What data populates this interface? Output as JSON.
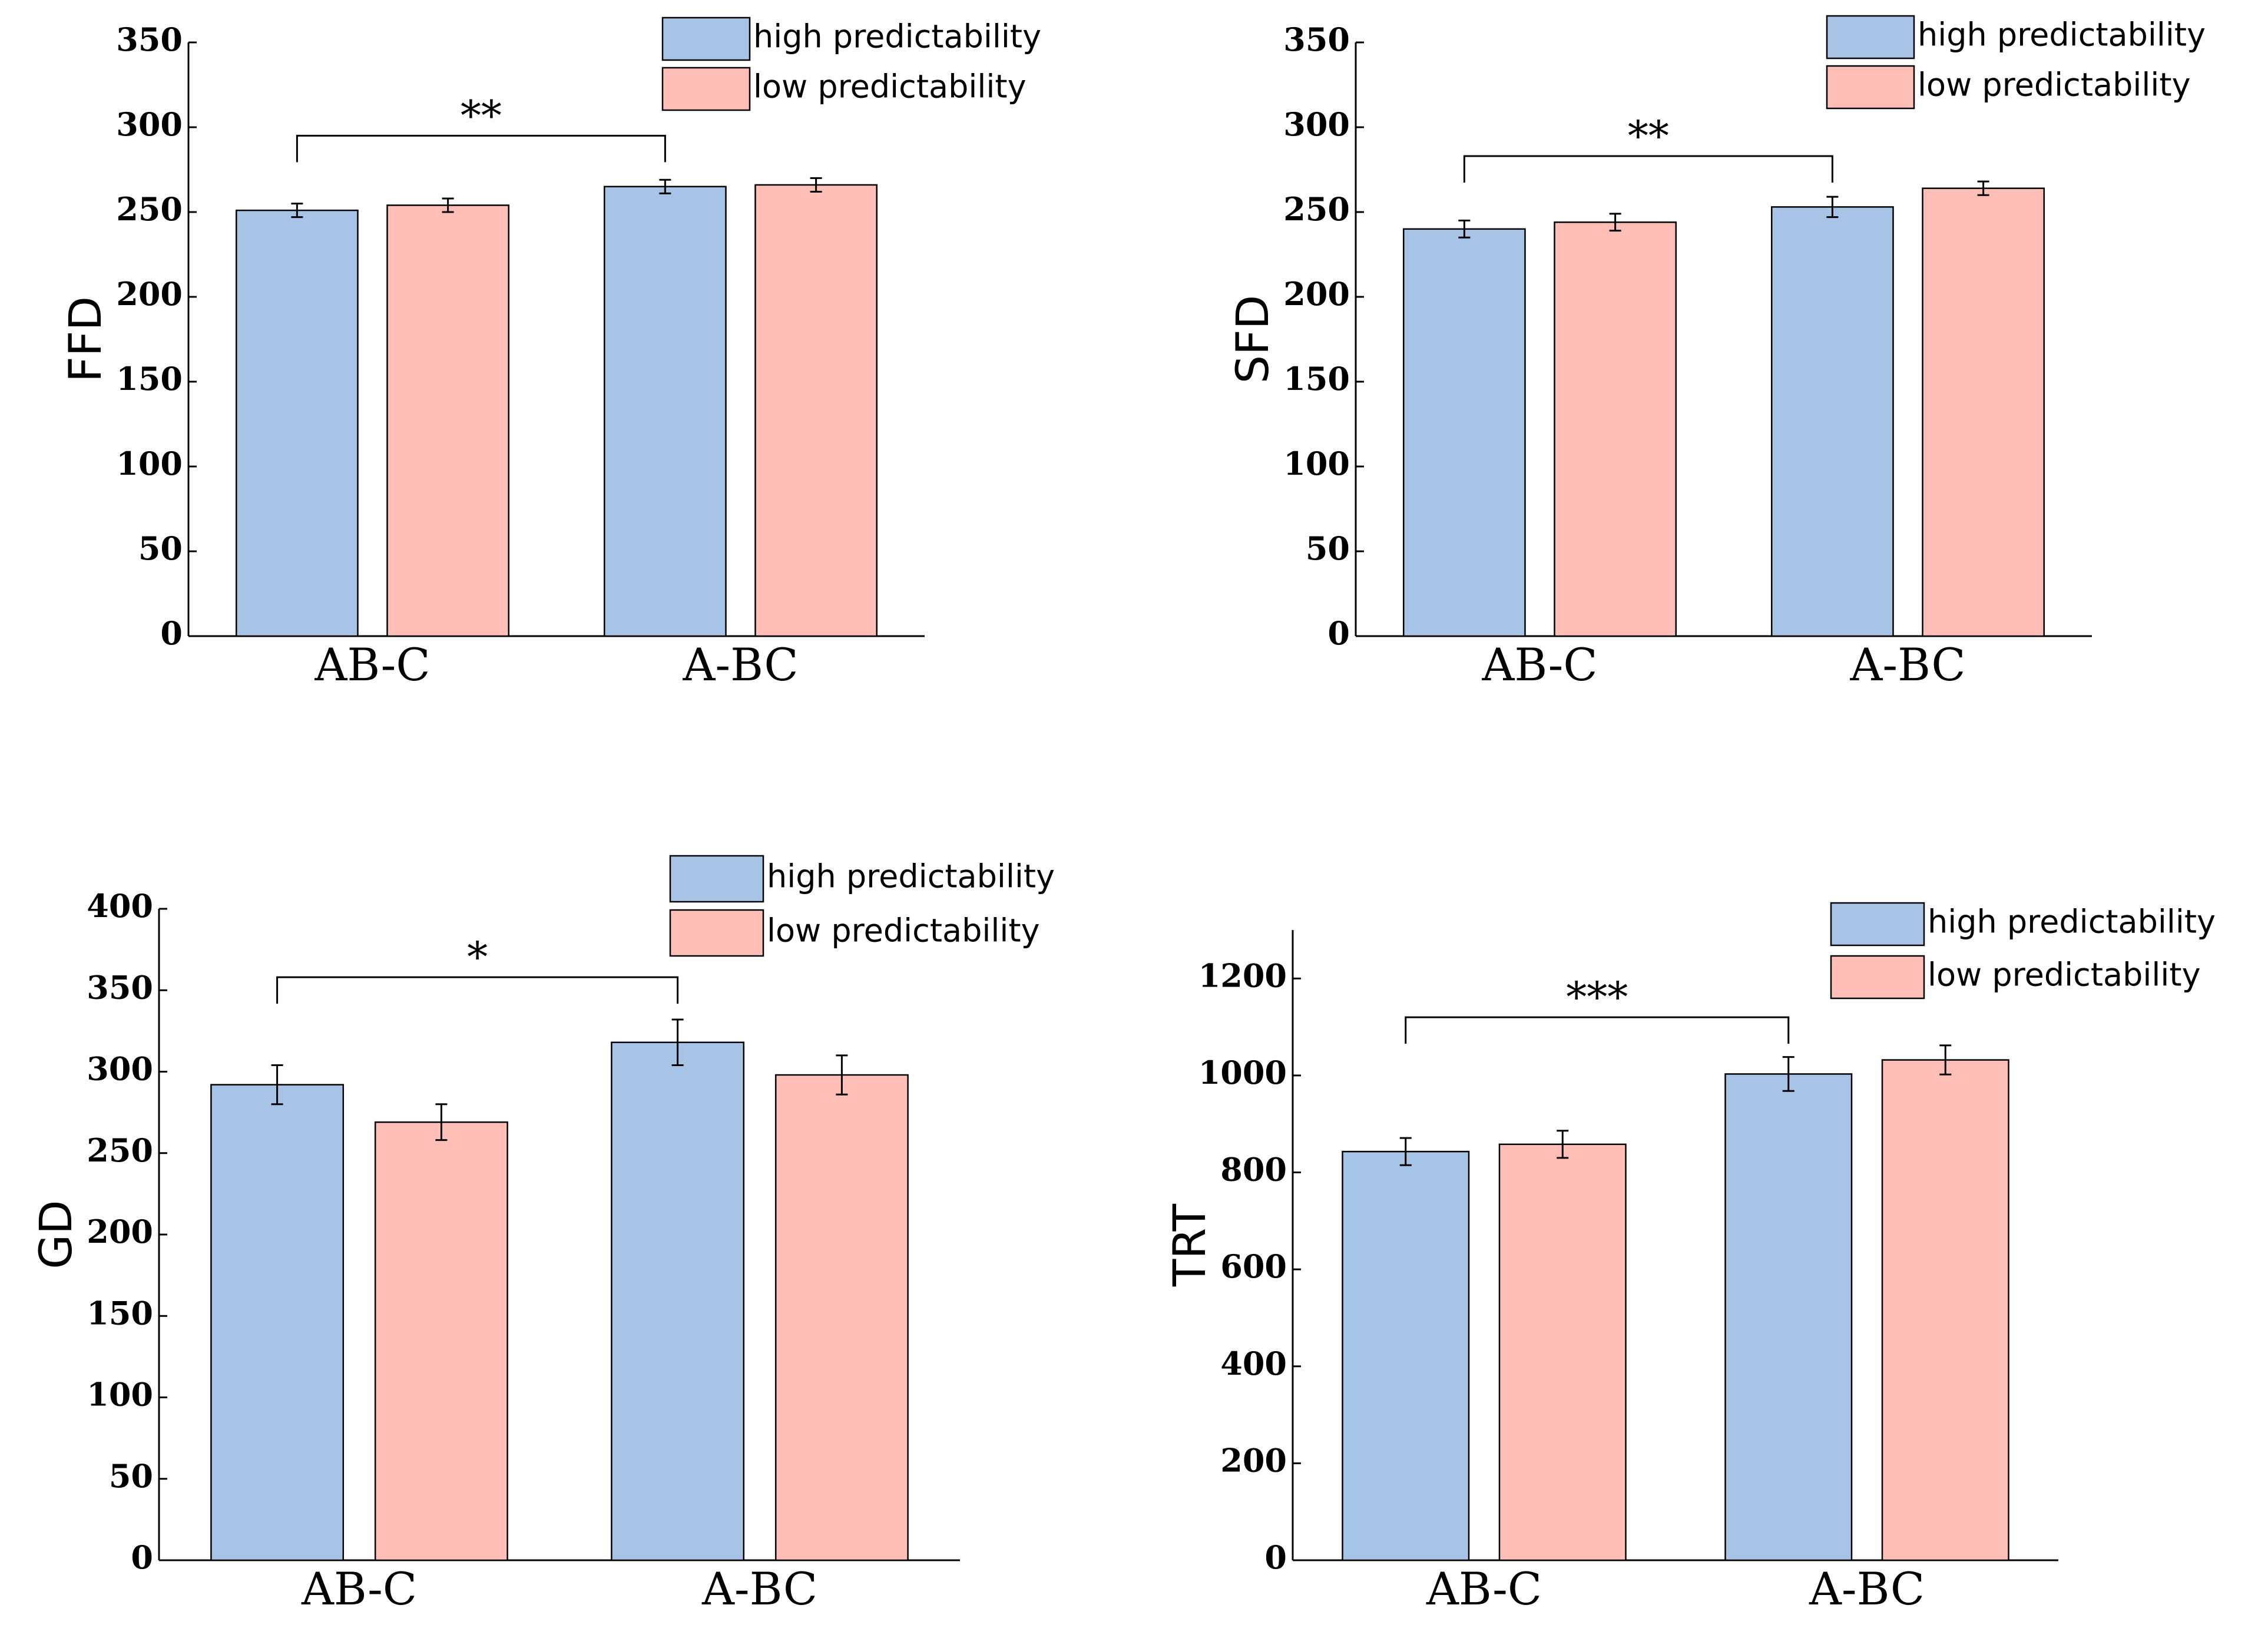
{
  "chart_data": [
    {
      "type": "bar",
      "ylabel": "FFD",
      "xlabel": "",
      "categories": [
        "AB-C",
        "A-BC"
      ],
      "series": [
        {
          "name": "high predictability",
          "values": [
            251,
            265
          ],
          "errors": [
            4,
            4
          ]
        },
        {
          "name": "low predictability",
          "values": [
            254,
            266
          ],
          "errors": [
            4,
            4
          ]
        }
      ],
      "ylim": [
        0,
        350
      ],
      "yticks": [
        0,
        50,
        100,
        150,
        200,
        250,
        300,
        350
      ],
      "significance": {
        "label": "**",
        "from_category": 0,
        "to_category": 1,
        "level": 295
      },
      "legend_position": "top-right",
      "colors": {
        "high predictability": "#a7c4e7",
        "low predictability": "#ffbfb7"
      }
    },
    {
      "type": "bar",
      "ylabel": "SFD",
      "xlabel": "",
      "categories": [
        "AB-C",
        "A-BC"
      ],
      "series": [
        {
          "name": "high predictability",
          "values": [
            240,
            253
          ],
          "errors": [
            5,
            6
          ]
        },
        {
          "name": "low predictability",
          "values": [
            244,
            264
          ],
          "errors": [
            5,
            4
          ]
        }
      ],
      "ylim": [
        0,
        350
      ],
      "yticks": [
        0,
        50,
        100,
        150,
        200,
        250,
        300,
        350
      ],
      "significance": {
        "label": "**",
        "from_category": 0,
        "to_category": 1,
        "level": 283
      },
      "legend_position": "top-right",
      "colors": {
        "high predictability": "#a7c4e7",
        "low predictability": "#ffbfb7"
      }
    },
    {
      "type": "bar",
      "ylabel": "GD",
      "xlabel": "",
      "categories": [
        "AB-C",
        "A-BC"
      ],
      "series": [
        {
          "name": "high predictability",
          "values": [
            292,
            318
          ],
          "errors": [
            12,
            14
          ]
        },
        {
          "name": "low predictability",
          "values": [
            269,
            298
          ],
          "errors": [
            11,
            12
          ]
        }
      ],
      "ylim": [
        0,
        400
      ],
      "yticks": [
        0,
        50,
        100,
        150,
        200,
        250,
        300,
        350,
        400
      ],
      "significance": {
        "label": "*",
        "from_category": 0,
        "to_category": 1,
        "level": 358
      },
      "legend_position": "top-right",
      "colors": {
        "high predictability": "#a7c4e7",
        "low predictability": "#ffbfb7"
      }
    },
    {
      "type": "bar",
      "ylabel": "TRT",
      "xlabel": "",
      "categories": [
        "AB-C",
        "A-BC"
      ],
      "series": [
        {
          "name": "high predictability",
          "values": [
            843,
            1003
          ],
          "errors": [
            28,
            35
          ]
        },
        {
          "name": "low predictability",
          "values": [
            858,
            1032
          ],
          "errors": [
            28,
            30
          ]
        }
      ],
      "ylim": [
        0,
        1300
      ],
      "yticks": [
        0,
        200,
        400,
        600,
        800,
        1000,
        1200
      ],
      "significance": {
        "label": "***",
        "from_category": 0,
        "to_category": 1,
        "level": 1120
      },
      "legend_position": "top-right",
      "colors": {
        "high predictability": "#a7c4e7",
        "low predictability": "#ffbfb7"
      }
    }
  ]
}
